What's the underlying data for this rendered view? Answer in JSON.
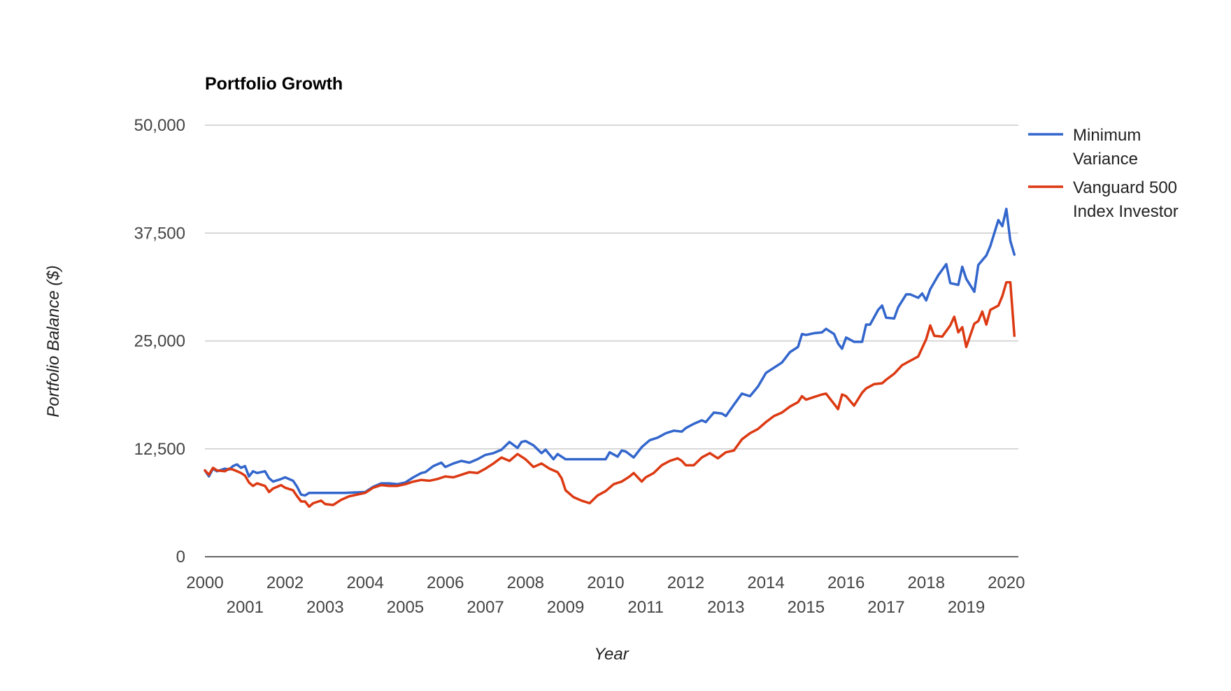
{
  "chart_data": {
    "type": "line",
    "title": "Portfolio Growth",
    "xlabel": "Year",
    "ylabel": "Portfolio Balance ($)",
    "xlim": [
      2000,
      2020.3
    ],
    "ylim": [
      0,
      50000
    ],
    "y_ticks": [
      0,
      12500,
      25000,
      37500,
      50000
    ],
    "y_tick_labels": [
      "0",
      "12,500",
      "25,000",
      "37,500",
      "50,000"
    ],
    "x_ticks_top": [
      "2000",
      "2002",
      "2004",
      "2006",
      "2008",
      "2010",
      "2012",
      "2014",
      "2016",
      "2018",
      "2020"
    ],
    "x_ticks_bottom": [
      "2001",
      "2003",
      "2005",
      "2007",
      "2009",
      "2011",
      "2013",
      "2015",
      "2017",
      "2019"
    ],
    "grid": true,
    "legend_position": "right",
    "series": [
      {
        "name": "Minimum Variance",
        "color": "#3366cc",
        "x": [
          2000.0,
          2000.1,
          2000.2,
          2000.3,
          2000.5,
          2000.6,
          2000.7,
          2000.8,
          2000.9,
          2001.0,
          2001.1,
          2001.2,
          2001.3,
          2001.5,
          2001.6,
          2001.7,
          2001.9,
          2002.0,
          2002.2,
          2002.3,
          2002.4,
          2002.5,
          2002.6,
          2002.8,
          2002.9,
          2003.0,
          2003.2,
          2003.5,
          2004.0,
          2004.2,
          2004.4,
          2004.6,
          2004.8,
          2005.0,
          2005.2,
          2005.4,
          2005.5,
          2005.7,
          2005.9,
          2006.0,
          2006.2,
          2006.4,
          2006.6,
          2006.8,
          2007.0,
          2007.2,
          2007.4,
          2007.6,
          2007.8,
          2007.9,
          2008.0,
          2008.2,
          2008.4,
          2008.5,
          2008.7,
          2008.8,
          2009.0,
          2009.5,
          2009.8,
          2010.0,
          2010.1,
          2010.3,
          2010.4,
          2010.5,
          2010.7,
          2010.9,
          2011.0,
          2011.1,
          2011.3,
          2011.5,
          2011.7,
          2011.9,
          2012.0,
          2012.2,
          2012.4,
          2012.5,
          2012.7,
          2012.9,
          2013.0,
          2013.2,
          2013.4,
          2013.6,
          2013.8,
          2014.0,
          2014.2,
          2014.4,
          2014.6,
          2014.8,
          2014.9,
          2015.0,
          2015.2,
          2015.4,
          2015.5,
          2015.7,
          2015.8,
          2015.9,
          2016.0,
          2016.2,
          2016.4,
          2016.5,
          2016.6,
          2016.8,
          2016.9,
          2017.0,
          2017.2,
          2017.3,
          2017.5,
          2017.6,
          2017.8,
          2017.9,
          2018.0,
          2018.1,
          2018.3,
          2018.5,
          2018.6,
          2018.8,
          2018.9,
          2019.0,
          2019.2,
          2019.3,
          2019.5,
          2019.6,
          2019.8,
          2019.9,
          2020.0,
          2020.1,
          2020.2
        ],
        "y": [
          10000,
          9300,
          10200,
          9900,
          10200,
          10100,
          10500,
          10700,
          10300,
          10500,
          9300,
          9900,
          9700,
          9900,
          9100,
          8700,
          9000,
          9200,
          8800,
          8100,
          7200,
          7100,
          7400,
          7400,
          7400,
          7400,
          7400,
          7400,
          7500,
          8100,
          8500,
          8500,
          8400,
          8600,
          9200,
          9700,
          9800,
          10500,
          10900,
          10400,
          10800,
          11100,
          10900,
          11300,
          11800,
          12000,
          12400,
          13300,
          12600,
          13300,
          13400,
          12900,
          12000,
          12400,
          11300,
          11900,
          11300,
          11300,
          11300,
          11300,
          12100,
          11600,
          12300,
          12200,
          11500,
          12700,
          13100,
          13500,
          13800,
          14300,
          14600,
          14500,
          14900,
          15400,
          15800,
          15600,
          16700,
          16600,
          16300,
          17600,
          18900,
          18600,
          19700,
          21300,
          21900,
          22500,
          23700,
          24300,
          25800,
          25700,
          25900,
          26000,
          26400,
          25800,
          24700,
          24100,
          25400,
          24900,
          24900,
          26900,
          26900,
          28600,
          29100,
          27700,
          27600,
          28900,
          30400,
          30400,
          30000,
          30500,
          29700,
          31000,
          32600,
          33900,
          31700,
          31500,
          33600,
          32200,
          30700,
          33800,
          34900,
          36000,
          39000,
          38300,
          40300,
          36600,
          35000
        ]
      },
      {
        "name": "Vanguard 500 Index Investor",
        "color": "#dc3912",
        "x": [
          2000.0,
          2000.1,
          2000.2,
          2000.3,
          2000.5,
          2000.6,
          2000.7,
          2000.8,
          2000.9,
          2001.0,
          2001.1,
          2001.2,
          2001.3,
          2001.5,
          2001.6,
          2001.7,
          2001.9,
          2002.0,
          2002.2,
          2002.3,
          2002.4,
          2002.5,
          2002.6,
          2002.7,
          2002.9,
          2003.0,
          2003.2,
          2003.4,
          2003.6,
          2003.8,
          2004.0,
          2004.2,
          2004.4,
          2004.6,
          2004.8,
          2005.0,
          2005.2,
          2005.4,
          2005.6,
          2005.8,
          2006.0,
          2006.2,
          2006.4,
          2006.6,
          2006.8,
          2007.0,
          2007.2,
          2007.4,
          2007.6,
          2007.8,
          2008.0,
          2008.2,
          2008.4,
          2008.6,
          2008.8,
          2008.9,
          2009.0,
          2009.2,
          2009.4,
          2009.6,
          2009.8,
          2010.0,
          2010.2,
          2010.4,
          2010.6,
          2010.7,
          2010.9,
          2011.0,
          2011.2,
          2011.4,
          2011.6,
          2011.8,
          2011.9,
          2012.0,
          2012.2,
          2012.4,
          2012.6,
          2012.8,
          2013.0,
          2013.2,
          2013.4,
          2013.6,
          2013.8,
          2014.0,
          2014.2,
          2014.4,
          2014.6,
          2014.8,
          2014.9,
          2015.0,
          2015.2,
          2015.4,
          2015.5,
          2015.7,
          2015.8,
          2015.9,
          2016.0,
          2016.2,
          2016.4,
          2016.5,
          2016.7,
          2016.9,
          2017.0,
          2017.2,
          2017.4,
          2017.6,
          2017.8,
          2017.9,
          2018.0,
          2018.1,
          2018.2,
          2018.4,
          2018.6,
          2018.7,
          2018.8,
          2018.9,
          2019.0,
          2019.2,
          2019.3,
          2019.4,
          2019.5,
          2019.6,
          2019.8,
          2019.9,
          2020.0,
          2020.1,
          2020.2
        ],
        "y": [
          10000,
          9500,
          10300,
          10000,
          9900,
          10200,
          10100,
          9900,
          9700,
          9400,
          8600,
          8200,
          8500,
          8200,
          7500,
          7900,
          8300,
          8000,
          7700,
          7000,
          6400,
          6400,
          5800,
          6200,
          6500,
          6100,
          6000,
          6600,
          7000,
          7200,
          7400,
          8000,
          8300,
          8200,
          8200,
          8400,
          8700,
          8900,
          8800,
          9000,
          9300,
          9200,
          9500,
          9800,
          9700,
          10200,
          10800,
          11500,
          11100,
          11900,
          11300,
          10400,
          10800,
          10200,
          9800,
          9100,
          7700,
          6900,
          6500,
          6200,
          7100,
          7600,
          8400,
          8700,
          9300,
          9700,
          8700,
          9200,
          9700,
          10600,
          11100,
          11400,
          11100,
          10600,
          10600,
          11500,
          12000,
          11400,
          12100,
          12300,
          13600,
          14300,
          14800,
          15600,
          16300,
          16700,
          17400,
          17900,
          18600,
          18200,
          18500,
          18800,
          18900,
          17700,
          17100,
          18800,
          18600,
          17500,
          19000,
          19500,
          20000,
          20100,
          20500,
          21200,
          22200,
          22700,
          23200,
          24200,
          25200,
          26800,
          25600,
          25500,
          26800,
          27800,
          26000,
          26600,
          24300,
          27000,
          27300,
          28400,
          26900,
          28600,
          29100,
          30200,
          31800,
          31800,
          25600
        ]
      }
    ]
  }
}
